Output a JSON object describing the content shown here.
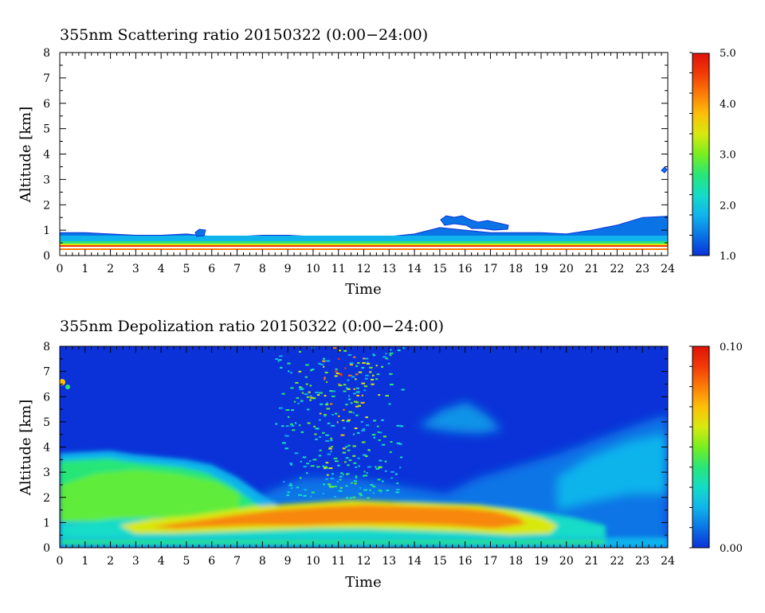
{
  "chart_data": [
    {
      "type": "heatmap",
      "title": "355nm Scattering ratio  20150322 (0:00−24:00)",
      "xlabel": "Time",
      "ylabel": "Altitude [km]",
      "xlim": [
        0,
        24
      ],
      "ylim": [
        0,
        8
      ],
      "x_ticks": [
        "0",
        "1",
        "2",
        "3",
        "4",
        "5",
        "6",
        "7",
        "8",
        "9",
        "10",
        "11",
        "12",
        "13",
        "14",
        "15",
        "16",
        "17",
        "18",
        "19",
        "20",
        "21",
        "22",
        "23",
        "24"
      ],
      "y_ticks": [
        "0",
        "1",
        "2",
        "3",
        "4",
        "5",
        "6",
        "7",
        "8"
      ],
      "colorbar": {
        "range": [
          1.0,
          5.0
        ],
        "tick_labels": [
          "1.0",
          "2.0",
          "3.0",
          "4.0",
          "5.0"
        ],
        "tick_values": [
          1.0,
          2.0,
          3.0,
          4.0,
          5.0
        ]
      },
      "colors": [
        "#0a32d8",
        "#0a74e6",
        "#10b4ec",
        "#14dcc8",
        "#28e678",
        "#78ee20",
        "#d8e810",
        "#fcc00a",
        "#fc7c08",
        "#f23a08",
        "#e01208"
      ],
      "features": [
        {
          "name": "aerosol-layer-top",
          "time": [
            0,
            1,
            2,
            3,
            4,
            5,
            6,
            7,
            8,
            9,
            10,
            11,
            12,
            13,
            14,
            15,
            16,
            17,
            18,
            19,
            20,
            21,
            22,
            23,
            24
          ],
          "altitude_km": [
            0.9,
            0.9,
            0.85,
            0.8,
            0.8,
            0.85,
            0.75,
            0.75,
            0.8,
            0.8,
            0.75,
            0.7,
            0.7,
            0.75,
            0.85,
            1.1,
            1.0,
            0.9,
            0.9,
            0.9,
            0.85,
            1.0,
            1.2,
            1.5,
            1.55
          ]
        },
        {
          "name": "strong-near-surface-layer",
          "altitude_km": 0.35
        },
        {
          "name": "elevated-cloud",
          "time_start": 15.4,
          "time_end": 18.0,
          "altitude_km": 1.3
        },
        {
          "name": "isolated-cloud",
          "time": 23.8,
          "altitude_km": 3.35
        }
      ]
    },
    {
      "type": "heatmap",
      "title": "355nm Depolization ratio  20150322 (0:00−24:00)",
      "xlabel": "Time",
      "ylabel": "Altitude [km]",
      "xlim": [
        0,
        24
      ],
      "ylim": [
        0,
        8
      ],
      "x_ticks": [
        "0",
        "1",
        "2",
        "3",
        "4",
        "5",
        "6",
        "7",
        "8",
        "9",
        "10",
        "11",
        "12",
        "13",
        "14",
        "15",
        "16",
        "17",
        "18",
        "19",
        "20",
        "21",
        "22",
        "23",
        "24"
      ],
      "y_ticks": [
        "0",
        "1",
        "2",
        "3",
        "4",
        "5",
        "6",
        "7",
        "8"
      ],
      "colorbar": {
        "range": [
          0.0,
          0.1
        ],
        "tick_labels": [
          "0.00",
          "0.10"
        ],
        "tick_values": [
          0.0,
          0.1
        ]
      },
      "colors": [
        "#0a32d8",
        "#0a74e6",
        "#10b4ec",
        "#14dcc8",
        "#28e678",
        "#78ee20",
        "#d8e810",
        "#fcc00a",
        "#fc7c08",
        "#f23a08",
        "#e01208"
      ],
      "features": [
        {
          "name": "dust-layer",
          "time": [
            0,
            1,
            2,
            3,
            4,
            5,
            6,
            7,
            8,
            8.5
          ],
          "top_km": [
            3.75,
            3.8,
            3.85,
            3.7,
            3.6,
            3.5,
            3.3,
            2.8,
            2.1,
            1.8
          ]
        },
        {
          "name": "high-depol-band",
          "time_start": 3,
          "time_end": 19.5,
          "altitude_km": 1.2
        },
        {
          "name": "ice-cloud-speckle",
          "time_start": 8.5,
          "time_end": 13.5,
          "altitude_range_km": [
            2.0,
            8.0
          ]
        },
        {
          "name": "elevated-plume",
          "time_start": 14.5,
          "time_end": 17.5,
          "altitude_range_km": [
            4.5,
            6.0
          ]
        }
      ]
    }
  ]
}
